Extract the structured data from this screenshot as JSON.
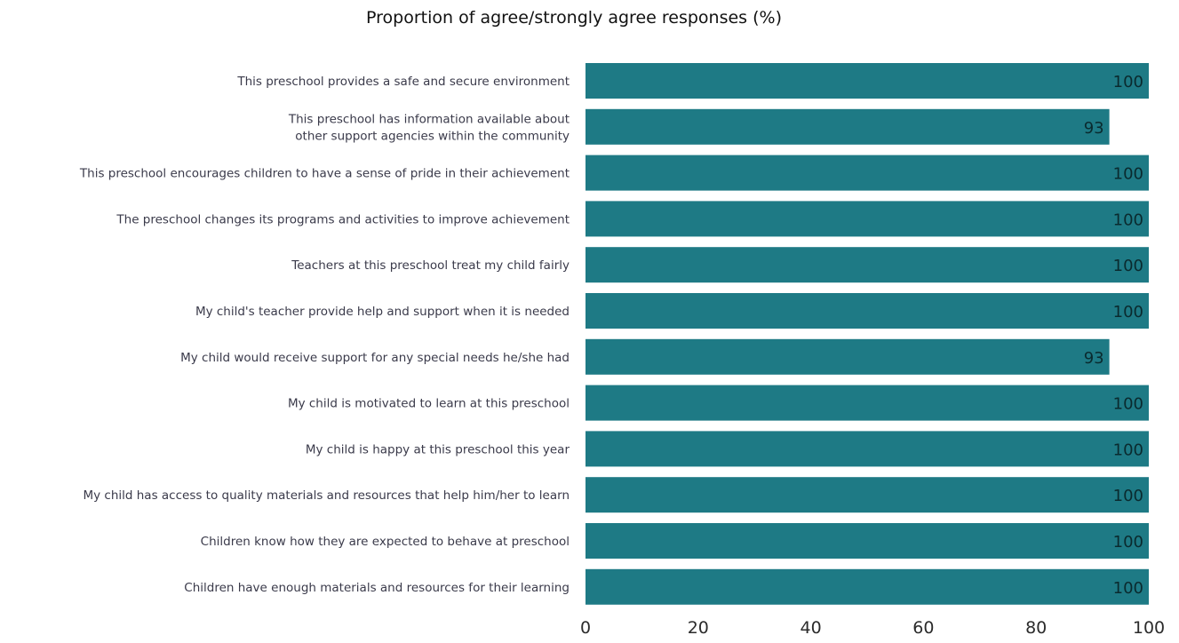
{
  "chart_data": {
    "type": "bar",
    "orientation": "horizontal",
    "title": "Proportion of agree/strongly agree responses (%)",
    "xlabel": "",
    "ylabel": "",
    "xlim": [
      0,
      100
    ],
    "x_ticks": [
      "0",
      "20",
      "40",
      "60",
      "80",
      "100"
    ],
    "grid": false,
    "legend": "none",
    "bar_color": "#1e7a85",
    "categories": [
      [
        "This preschool provides a safe and secure environment"
      ],
      [
        "This preschool has information available about",
        "other support agencies within the community"
      ],
      [
        "This preschool encourages children to have a sense of pride in their achievement"
      ],
      [
        "The preschool changes its programs and activities to improve achievement"
      ],
      [
        "Teachers at this preschool treat my child fairly"
      ],
      [
        "My child's teacher provide help and support when it is needed"
      ],
      [
        "My child would receive support for any special needs he/she had"
      ],
      [
        "My child is motivated to learn at this preschool"
      ],
      [
        "My child is happy at this preschool this year"
      ],
      [
        "My child has access to quality materials and resources that help him/her to learn"
      ],
      [
        "Children know how they are expected to behave at preschool"
      ],
      [
        "Children have enough materials and resources for their learning"
      ]
    ],
    "values": [
      100,
      93,
      100,
      100,
      100,
      100,
      93,
      100,
      100,
      100,
      100,
      100
    ],
    "data_labels": [
      "100",
      "93",
      "100",
      "100",
      "100",
      "100",
      "93",
      "100",
      "100",
      "100",
      "100",
      "100"
    ]
  }
}
